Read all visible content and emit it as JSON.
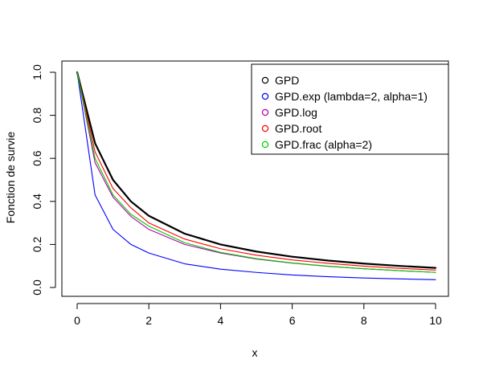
{
  "chart_data": {
    "type": "line",
    "title": "",
    "xlabel": "x",
    "ylabel": "Fonction de survie",
    "xlim": [
      0,
      10
    ],
    "ylim": [
      0,
      1
    ],
    "x_ticks": [
      0,
      2,
      4,
      6,
      8,
      10
    ],
    "y_ticks": [
      0.0,
      0.2,
      0.4,
      0.6,
      0.8,
      1.0
    ],
    "x_tick_labels": [
      "0",
      "2",
      "4",
      "6",
      "8",
      "10"
    ],
    "y_tick_labels": [
      "0.0",
      "0.2",
      "0.4",
      "0.6",
      "0.8",
      "1.0"
    ],
    "grid": false,
    "legend_position": "top-right",
    "x": [
      0,
      0.5,
      1,
      1.5,
      2,
      3,
      4,
      5,
      6,
      7,
      8,
      9,
      10
    ],
    "series": [
      {
        "name": "GPD",
        "color": "#000000",
        "values": [
          1.0,
          0.67,
          0.5,
          0.4,
          0.333,
          0.25,
          0.2,
          0.167,
          0.143,
          0.125,
          0.111,
          0.1,
          0.091
        ]
      },
      {
        "name": "GPD.exp (lambda=2, alpha=1)",
        "color": "#0000ff",
        "values": [
          1.0,
          0.43,
          0.27,
          0.2,
          0.16,
          0.11,
          0.085,
          0.07,
          0.058,
          0.05,
          0.044,
          0.04,
          0.036
        ]
      },
      {
        "name": "GPD.log",
        "color": "#b000b0",
        "values": [
          1.0,
          0.58,
          0.42,
          0.33,
          0.27,
          0.2,
          0.16,
          0.132,
          0.113,
          0.098,
          0.087,
          0.078,
          0.07
        ]
      },
      {
        "name": "GPD.root",
        "color": "#ff0000",
        "values": [
          1.0,
          0.63,
          0.46,
          0.37,
          0.3,
          0.225,
          0.18,
          0.15,
          0.128,
          0.112,
          0.099,
          0.089,
          0.081
        ]
      },
      {
        "name": "GPD.frac (alpha=2)",
        "color": "#00cc00",
        "values": [
          1.0,
          0.6,
          0.43,
          0.34,
          0.285,
          0.208,
          0.163,
          0.134,
          0.114,
          0.099,
          0.087,
          0.078,
          0.07
        ]
      }
    ]
  }
}
